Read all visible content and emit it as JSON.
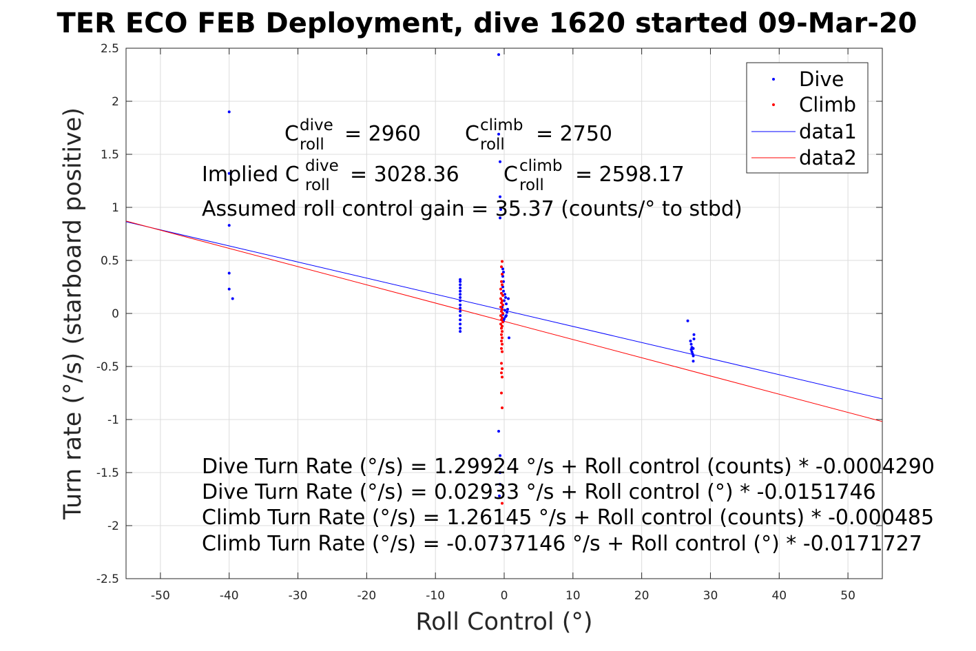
{
  "chart_data": {
    "type": "scatter",
    "title": "TER ECO FEB Deployment, dive 1620 started 09-Mar-20",
    "xlabel": "Roll Control (°)",
    "ylabel": "Turn rate (°/s) (starboard positive)",
    "xlim": [
      -55,
      55
    ],
    "ylim": [
      -2.5,
      2.5
    ],
    "xticks": [
      -50,
      -40,
      -30,
      -20,
      -10,
      0,
      10,
      20,
      30,
      40,
      50
    ],
    "yticks": [
      -2.5,
      -2,
      -1.5,
      -1,
      -0.5,
      0,
      0.5,
      1,
      1.5,
      2,
      2.5
    ],
    "x_tick_labels": [
      "-50",
      "-40",
      "-30",
      "-20",
      "-10",
      "0",
      "10",
      "20",
      "30",
      "40",
      "50"
    ],
    "y_tick_labels": [
      "-2.5",
      "-2",
      "-1.5",
      "-1",
      "-0.5",
      "0",
      "0.5",
      "1",
      "1.5",
      "2",
      "2.5"
    ],
    "grid": true,
    "legend_position": "top-right",
    "colors": {
      "dive": "#0000ff",
      "climb": "#ff0000",
      "data1": "#0000ff",
      "data2": "#ff0000"
    },
    "series": [
      {
        "name": "Dive",
        "kind": "points",
        "points": [
          [
            -40,
            1.9
          ],
          [
            -40,
            1.32
          ],
          [
            -40,
            0.83
          ],
          [
            -40,
            0.38
          ],
          [
            -40,
            0.23
          ],
          [
            -39.5,
            0.14
          ],
          [
            -6.4,
            0.32
          ],
          [
            -6.4,
            0.3
          ],
          [
            -6.4,
            0.27
          ],
          [
            -6.4,
            0.24
          ],
          [
            -6.4,
            0.21
          ],
          [
            -6.4,
            0.18
          ],
          [
            -6.4,
            0.15
          ],
          [
            -6.4,
            0.12
          ],
          [
            -6.4,
            0.08
          ],
          [
            -6.4,
            0.05
          ],
          [
            -6.4,
            0.02
          ],
          [
            -6.4,
            -0.02
          ],
          [
            -6.4,
            -0.06
          ],
          [
            -6.4,
            -0.1
          ],
          [
            -6.4,
            -0.14
          ],
          [
            -6.4,
            -0.17
          ],
          [
            -0.8,
            2.44
          ],
          [
            -0.8,
            1.69
          ],
          [
            -0.6,
            1.43
          ],
          [
            -0.6,
            1.1
          ],
          [
            -0.5,
            0.98
          ],
          [
            -0.6,
            0.9
          ],
          [
            -0.2,
            0.42
          ],
          [
            -0.1,
            0.39
          ],
          [
            -0.2,
            0.35
          ],
          [
            -0.1,
            0.3
          ],
          [
            -0.2,
            0.25
          ],
          [
            -0.1,
            0.21
          ],
          [
            0.1,
            0.18
          ],
          [
            0.2,
            0.15
          ],
          [
            0.0,
            0.12
          ],
          [
            0.3,
            0.09
          ],
          [
            -0.3,
            0.06
          ],
          [
            0.1,
            0.03
          ],
          [
            0.4,
            0.01
          ],
          [
            -0.2,
            -0.01
          ],
          [
            0.2,
            -0.03
          ],
          [
            0.0,
            -0.05
          ],
          [
            -0.1,
            -0.07
          ],
          [
            0.5,
            0.04
          ],
          [
            0.6,
            0.14
          ],
          [
            0.3,
            -0.02
          ],
          [
            0.7,
            -0.23
          ],
          [
            -0.8,
            -1.11
          ],
          [
            -0.6,
            -1.34
          ],
          [
            -0.6,
            -1.5
          ],
          [
            -0.6,
            -1.61
          ],
          [
            -0.7,
            -1.72
          ],
          [
            26.7,
            -0.07
          ],
          [
            27.1,
            -0.26
          ],
          [
            27.2,
            -0.29
          ],
          [
            27.3,
            -0.32
          ],
          [
            27.3,
            -0.36
          ],
          [
            27.4,
            -0.38
          ],
          [
            27.5,
            -0.4
          ],
          [
            27.5,
            -0.45
          ],
          [
            27.6,
            -0.2
          ],
          [
            27.6,
            -0.24
          ],
          [
            27.5,
            -0.33
          ],
          [
            27.2,
            -0.34
          ]
        ]
      },
      {
        "name": "Climb",
        "kind": "points",
        "points": [
          [
            -0.3,
            0.49
          ],
          [
            -0.4,
            0.44
          ],
          [
            -0.3,
            0.37
          ],
          [
            -0.4,
            0.3
          ],
          [
            -0.3,
            0.27
          ],
          [
            -0.5,
            0.23
          ],
          [
            -0.4,
            0.19
          ],
          [
            -0.2,
            0.17
          ],
          [
            -0.5,
            0.14
          ],
          [
            -0.3,
            0.12
          ],
          [
            -0.4,
            0.1
          ],
          [
            -0.2,
            0.08
          ],
          [
            -0.5,
            0.06
          ],
          [
            -0.3,
            0.04
          ],
          [
            -0.4,
            0.02
          ],
          [
            -0.2,
            0.0
          ],
          [
            -0.5,
            -0.02
          ],
          [
            -0.3,
            -0.04
          ],
          [
            -0.4,
            -0.06
          ],
          [
            -0.2,
            -0.08
          ],
          [
            -0.5,
            -0.1
          ],
          [
            -0.3,
            -0.12
          ],
          [
            -0.4,
            -0.14
          ],
          [
            -0.3,
            -0.17
          ],
          [
            -0.4,
            -0.2
          ],
          [
            -0.3,
            -0.23
          ],
          [
            -0.4,
            -0.26
          ],
          [
            -0.3,
            -0.29
          ],
          [
            -0.4,
            -0.33
          ],
          [
            -0.3,
            -0.36
          ],
          [
            -0.4,
            -0.47
          ],
          [
            -0.3,
            -0.52
          ],
          [
            -0.4,
            -0.56
          ],
          [
            -0.3,
            -0.6
          ],
          [
            -0.4,
            -0.75
          ],
          [
            -0.3,
            -0.89
          ],
          [
            -0.3,
            -1.79
          ]
        ]
      },
      {
        "name": "data1",
        "kind": "line",
        "x": [
          -55,
          55
        ],
        "y": [
          0.864,
          -0.805
        ]
      },
      {
        "name": "data2",
        "kind": "line",
        "x": [
          -55,
          55
        ],
        "y": [
          0.871,
          -1.019
        ]
      }
    ]
  },
  "annotations": {
    "c_dive_base": "C",
    "c_dive_sup": "dive",
    "c_dive_sub": "roll",
    "c_dive_value": "= 2960",
    "c_climb_base": "C",
    "c_climb_sup": "climb",
    "c_climb_sub": "roll",
    "c_climb_value": "= 2750",
    "implied_prefix": "Implied C",
    "implied_dive_sup": "dive",
    "implied_dive_sub": "roll",
    "implied_dive_value": "= 3028.36",
    "implied_climb_base": "C",
    "implied_climb_sup": "climb",
    "implied_climb_sub": "roll",
    "implied_climb_value": "= 2598.17",
    "gain_line": "Assumed roll control gain = 35.37 (counts/° to stbd)",
    "eq1": "Dive Turn Rate (°/s) = 1.29924 °/s + Roll control (counts) * -0.0004290",
    "eq2": "Dive Turn Rate (°/s) = 0.02933 °/s + Roll control (°) * -0.0151746",
    "eq3": "Climb Turn Rate (°/s) = 1.26145 °/s + Roll control (counts) * -0.000485",
    "eq4": "Climb Turn Rate (°/s) = -0.0737146 °/s + Roll control (°) * -0.0171727"
  },
  "legend": {
    "items": [
      {
        "label": "Dive",
        "kind": "marker",
        "color": "#0000ff"
      },
      {
        "label": "Climb",
        "kind": "marker",
        "color": "#ff0000"
      },
      {
        "label": "data1",
        "kind": "line",
        "color": "#0000ff"
      },
      {
        "label": "data2",
        "kind": "line",
        "color": "#ff0000"
      }
    ]
  }
}
